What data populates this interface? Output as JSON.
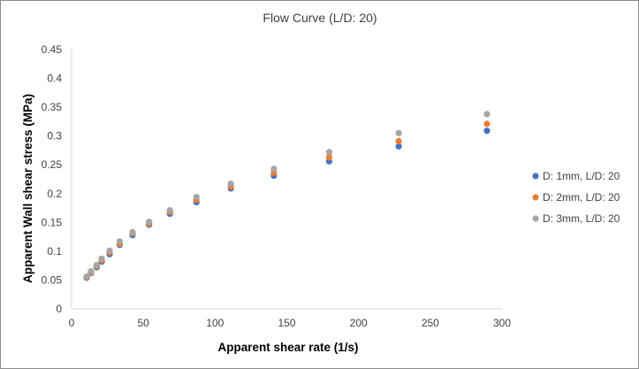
{
  "chart_data": {
    "type": "scatter",
    "title": "Flow Curve (L/D: 20)",
    "xlabel": "Apparent shear rate (1/s)",
    "ylabel": "Apparent Wall shear stress (MPa)",
    "xlim": [
      0,
      300
    ],
    "ylim": [
      0,
      0.45
    ],
    "x_ticks": [
      "0",
      "50",
      "100",
      "150",
      "200",
      "250",
      "300"
    ],
    "y_ticks": [
      "0",
      "0.05",
      "0.1",
      "0.15",
      "0.2",
      "0.25",
      "0.3",
      "0.35",
      "0.4",
      "0.45"
    ],
    "grid": false,
    "legend_position": "right",
    "x": [
      10.5,
      13.5,
      17.5,
      21.0,
      26.5,
      33.5,
      42.5,
      54.0,
      68.5,
      87.0,
      111.0,
      141.0,
      179.5,
      228.0,
      289.5
    ],
    "series": [
      {
        "name": "D: 1mm, L/D: 20",
        "color": "#4472C4",
        "values": [
          0.054,
          0.062,
          0.072,
          0.082,
          0.095,
          0.111,
          0.128,
          0.146,
          0.165,
          0.185,
          0.209,
          0.231,
          0.256,
          0.282,
          0.309
        ]
      },
      {
        "name": "D: 2mm, L/D: 20",
        "color": "#ED7D31",
        "values": [
          0.055,
          0.063,
          0.074,
          0.084,
          0.098,
          0.113,
          0.131,
          0.148,
          0.168,
          0.189,
          0.212,
          0.236,
          0.263,
          0.291,
          0.321
        ]
      },
      {
        "name": "D: 3mm, L/D: 20",
        "color": "#A5A5A5",
        "values": [
          0.056,
          0.065,
          0.076,
          0.087,
          0.101,
          0.117,
          0.133,
          0.151,
          0.171,
          0.194,
          0.217,
          0.243,
          0.272,
          0.305,
          0.338
        ]
      }
    ]
  }
}
